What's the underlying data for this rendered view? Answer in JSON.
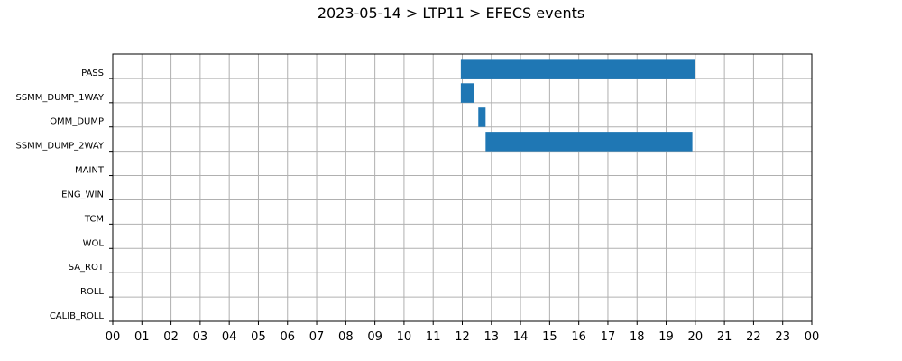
{
  "chart_data": {
    "type": "bar",
    "orientation": "horizontal-timeline",
    "title": "2023-05-14 > LTP11 > EFECS events",
    "xlabel": "",
    "ylabel": "",
    "xlim": [
      0,
      24
    ],
    "x_tick_labels": [
      "00",
      "01",
      "02",
      "03",
      "04",
      "05",
      "06",
      "07",
      "08",
      "09",
      "10",
      "11",
      "12",
      "13",
      "14",
      "15",
      "16",
      "17",
      "18",
      "19",
      "20",
      "21",
      "22",
      "23",
      "00"
    ],
    "categories": [
      "PASS",
      "SSMM_DUMP_1WAY",
      "OMM_DUMP",
      "SSMM_DUMP_2WAY",
      "MAINT",
      "ENG_WIN",
      "TCM",
      "WOL",
      "SA_ROT",
      "ROLL",
      "CALIB_ROLL"
    ],
    "grid": true,
    "bar_color": "#1f77b4",
    "events": [
      {
        "category": "PASS",
        "start": 11.95,
        "end": 20.0
      },
      {
        "category": "SSMM_DUMP_1WAY",
        "start": 11.95,
        "end": 12.4
      },
      {
        "category": "OMM_DUMP",
        "start": 12.55,
        "end": 12.8
      },
      {
        "category": "SSMM_DUMP_2WAY",
        "start": 12.8,
        "end": 19.9
      }
    ]
  }
}
